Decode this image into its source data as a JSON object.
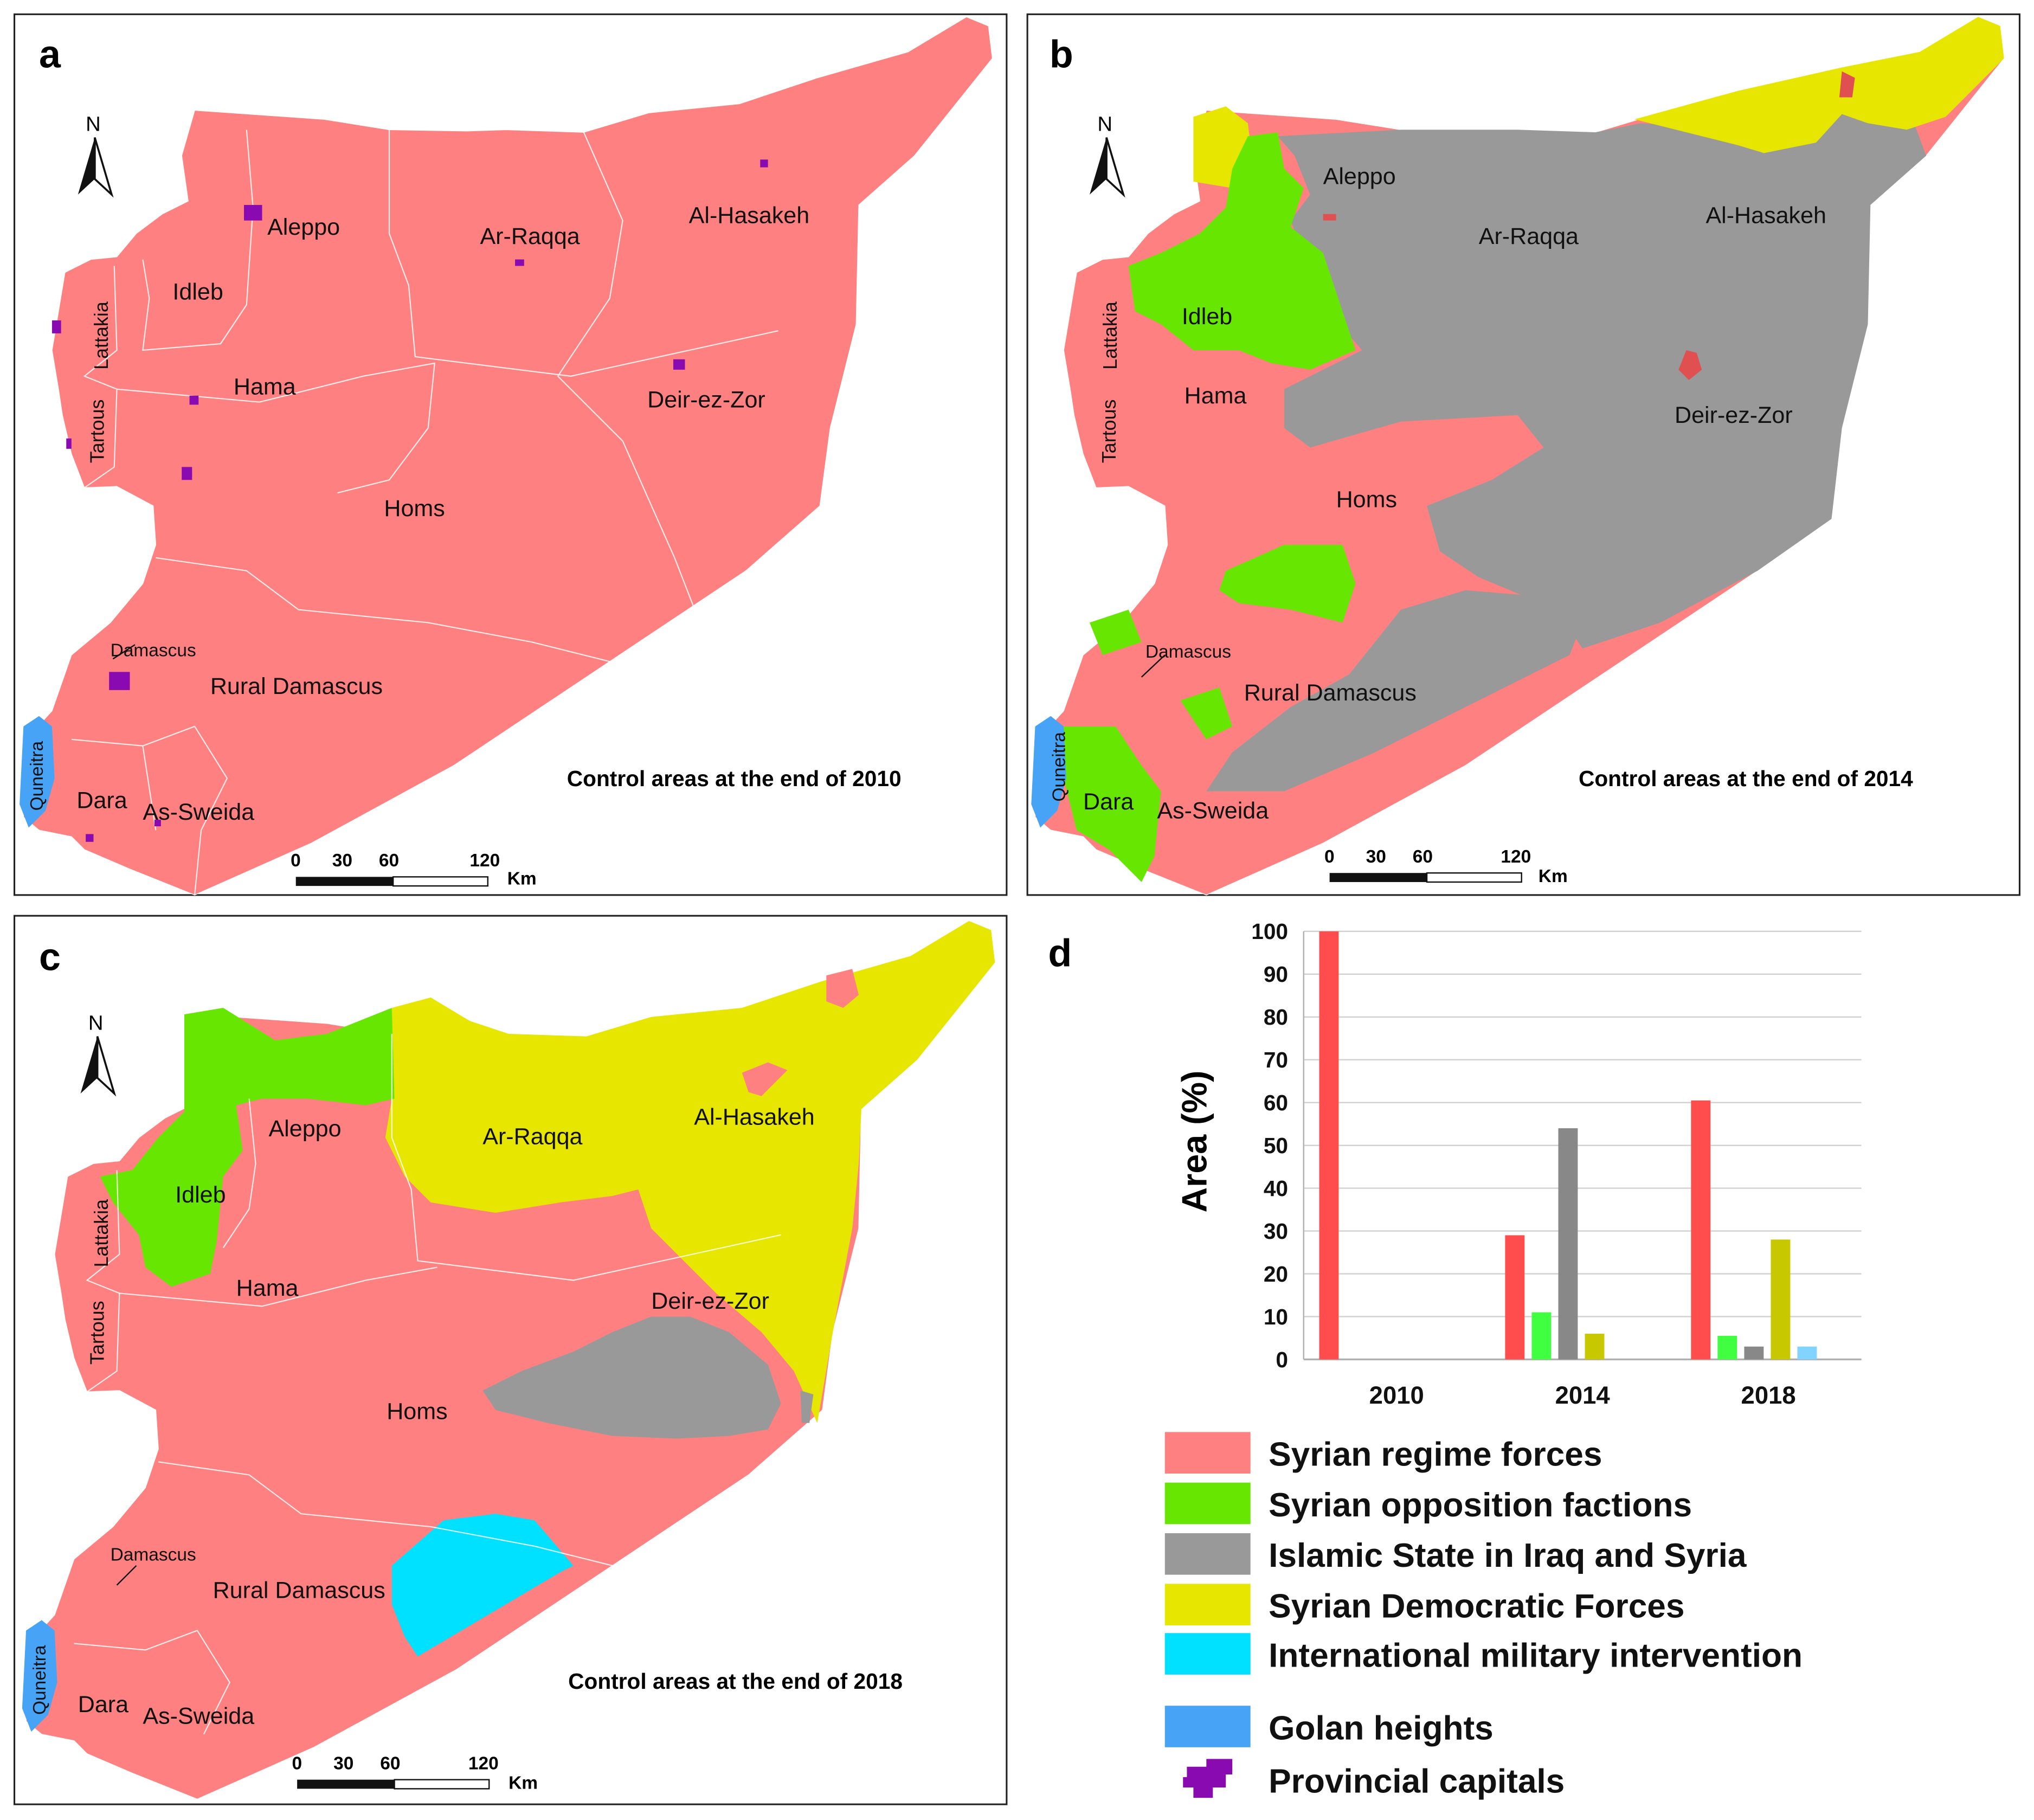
{
  "panels": [
    {
      "letter": "a",
      "caption": "Control areas at the end of 2010",
      "labels": {
        "aleppo": "Aleppo",
        "ar_raqqa": "Ar-Raqqa",
        "al_hasakeh": "Al-Hasakeh",
        "idleb": "Idleb",
        "lattakia": "Lattakia",
        "hama": "Hama",
        "deir_ez_zor": "Deir-ez-Zor",
        "tartous": "Tartous",
        "homs": "Homs",
        "damascus": "Damascus",
        "rural_damascus": "Rural Damascus",
        "quneitra": "Quneitra",
        "dara": "Dara",
        "as_sweida": "As-Sweida"
      }
    },
    {
      "letter": "b",
      "caption": "Control areas at the end of 2014",
      "labels": {
        "aleppo": "Aleppo",
        "ar_raqqa": "Ar-Raqqa",
        "al_hasakeh": "Al-Hasakeh",
        "idleb": "Idleb",
        "lattakia": "Lattakia",
        "hama": "Hama",
        "deir_ez_zor": "Deir-ez-Zor",
        "tartous": "Tartous",
        "homs": "Homs",
        "damascus": "Damascus",
        "rural_damascus": "Rural Damascus",
        "quneitra": "Quneitra",
        "dara": "Dara",
        "as_sweida": "As-Sweida"
      }
    },
    {
      "letter": "c",
      "caption": "Control areas at the end of 2018",
      "labels": {
        "aleppo": "Aleppo",
        "ar_raqqa": "Ar-Raqqa",
        "al_hasakeh": "Al-Hasakeh",
        "idleb": "Idleb",
        "lattakia": "Lattakia",
        "hama": "Hama",
        "deir_ez_zor": "Deir-ez-Zor",
        "tartous": "Tartous",
        "homs": "Homs",
        "damascus": "Damascus",
        "rural_damascus": "Rural Damascus",
        "quneitra": "Quneitra",
        "dara": "Dara",
        "as_sweida": "As-Sweida"
      }
    }
  ],
  "north_arrow": "N",
  "scale_bar": {
    "ticks": [
      "0",
      "30",
      "60",
      "120"
    ],
    "unit": "Km"
  },
  "colors": {
    "regime": "#ff8080",
    "opposition": "#66e600",
    "isis": "#999999",
    "sdf": "#e6e600",
    "intervention": "#00e0ff",
    "golan": "#47a3f5",
    "capitals": "#8a0ab2",
    "bar_regime": "#ff4d4d",
    "bar_opposition": "#40ff40",
    "bar_isis": "#888888",
    "bar_sdf": "#c8c800",
    "bar_intervention": "#80d4ff"
  },
  "chart_panel_letter": "d",
  "chart_data": {
    "type": "bar",
    "categories": [
      "2010",
      "2014",
      "2018"
    ],
    "ylabel": "Area (%)",
    "ylim": [
      0,
      100
    ],
    "yticks": [
      "0",
      "10",
      "20",
      "30",
      "40",
      "50",
      "60",
      "70",
      "80",
      "90",
      "100"
    ],
    "grid": true,
    "series": [
      {
        "name": "Syrian regime forces",
        "values": [
          100,
          29,
          60.5
        ]
      },
      {
        "name": "Syrian opposition factions",
        "values": [
          0,
          11,
          5.5
        ]
      },
      {
        "name": "Islamic State in Iraq and Syria",
        "values": [
          0,
          54,
          3
        ]
      },
      {
        "name": "Syrian Democratic Forces",
        "values": [
          0,
          6,
          28
        ]
      },
      {
        "name": "International military intervention",
        "values": [
          0,
          0,
          3
        ]
      }
    ]
  },
  "legend": [
    {
      "label": "Syrian regime forces",
      "color": "#ff8080"
    },
    {
      "label": "Syrian opposition factions",
      "color": "#66e600"
    },
    {
      "label": "Islamic State in Iraq and Syria",
      "color": "#999999"
    },
    {
      "label": "Syrian Democratic Forces",
      "color": "#e6e600"
    },
    {
      "label": "International military intervention",
      "color": "#00e0ff"
    },
    {
      "label": "Golan heights",
      "color": "#47a3f5"
    },
    {
      "label": "Provincial capitals",
      "color": "#8a0ab2"
    }
  ]
}
